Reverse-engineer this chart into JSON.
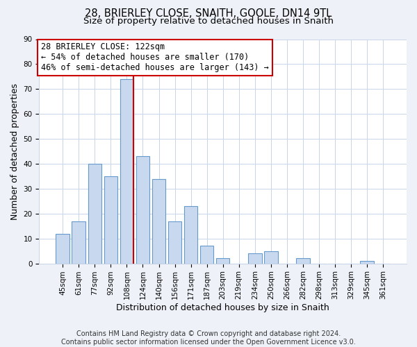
{
  "title": "28, BRIERLEY CLOSE, SNAITH, GOOLE, DN14 9TL",
  "subtitle": "Size of property relative to detached houses in Snaith",
  "xlabel": "Distribution of detached houses by size in Snaith",
  "ylabel": "Number of detached properties",
  "bin_labels": [
    "45sqm",
    "61sqm",
    "77sqm",
    "92sqm",
    "108sqm",
    "124sqm",
    "140sqm",
    "156sqm",
    "171sqm",
    "187sqm",
    "203sqm",
    "219sqm",
    "234sqm",
    "250sqm",
    "266sqm",
    "282sqm",
    "298sqm",
    "313sqm",
    "329sqm",
    "345sqm",
    "361sqm"
  ],
  "bar_heights": [
    12,
    17,
    40,
    35,
    74,
    43,
    34,
    17,
    23,
    7,
    2,
    0,
    4,
    5,
    0,
    2,
    0,
    0,
    0,
    1,
    0
  ],
  "bar_color": "#c8d9ef",
  "bar_edge_color": "#6699cc",
  "vline_x_index": 4,
  "vline_color": "#cc0000",
  "annotation_line1": "28 BRIERLEY CLOSE: 122sqm",
  "annotation_line2": "← 54% of detached houses are smaller (170)",
  "annotation_line3": "46% of semi-detached houses are larger (143) →",
  "annotation_box_color": "#ffffff",
  "annotation_box_edge": "#cc0000",
  "ylim": [
    0,
    90
  ],
  "yticks": [
    0,
    10,
    20,
    30,
    40,
    50,
    60,
    70,
    80,
    90
  ],
  "footer": "Contains HM Land Registry data © Crown copyright and database right 2024.\nContains public sector information licensed under the Open Government Licence v3.0.",
  "bg_color": "#eef2f8",
  "plot_bg_color": "#ffffff",
  "grid_color": "#c8d4e8",
  "title_fontsize": 10.5,
  "subtitle_fontsize": 9.5,
  "axis_label_fontsize": 9,
  "tick_fontsize": 7.5,
  "footer_fontsize": 7,
  "annotation_fontsize": 8.5
}
